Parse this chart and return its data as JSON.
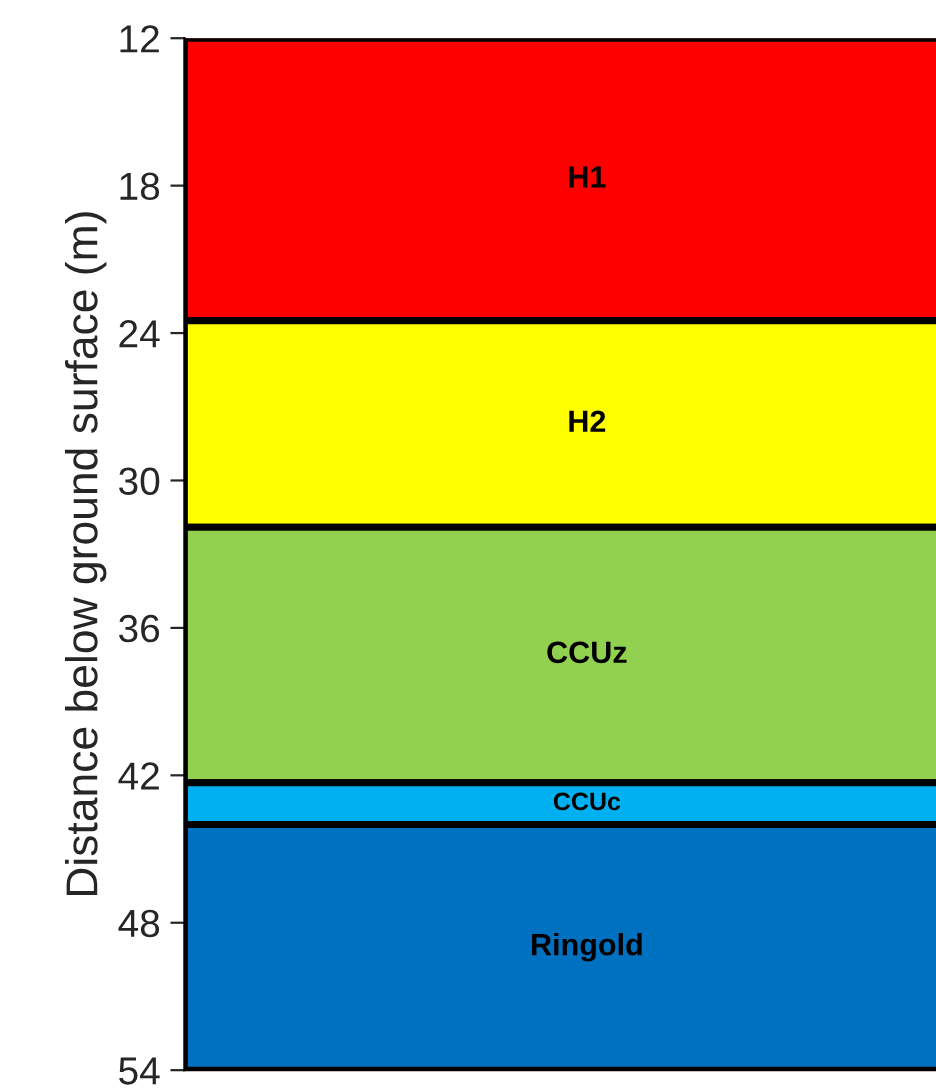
{
  "chart_data": {
    "type": "bar",
    "ylabel": "Distance below ground surface (m)",
    "categories": [
      null
    ],
    "series": [
      {
        "name": "H1",
        "color": "#fe0000",
        "values": [
          11.5
        ],
        "base": [
          12
        ]
      },
      {
        "name": "H2",
        "color": "#ffff00",
        "values": [
          8.4
        ],
        "base": [
          23.5
        ]
      },
      {
        "name": "CCUz",
        "color": "#92d050",
        "values": [
          10.4
        ],
        "base": [
          31.9
        ]
      },
      {
        "name": "CCUc",
        "color": "#00b0f0",
        "values": [
          1.7
        ],
        "base": [
          42.3
        ]
      },
      {
        "name": "Ringold",
        "color": "#0070c0",
        "values": [
          10.0
        ],
        "base": [
          44.0
        ]
      }
    ],
    "ylim": [
      54,
      12
    ],
    "yticks": [
      12,
      18,
      24,
      30,
      36,
      42,
      48,
      54
    ],
    "legend": false
  }
}
